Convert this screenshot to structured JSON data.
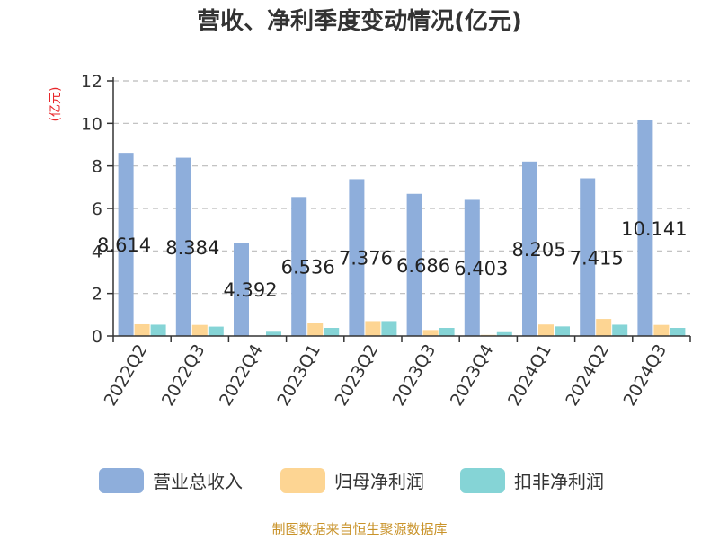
{
  "chart_data": {
    "type": "bar",
    "title": "营收、净利季度变动情况(亿元)",
    "ylabel": "(亿元)",
    "ylim": [
      0,
      12
    ],
    "yticks": [
      0,
      2,
      4,
      6,
      8,
      10,
      12
    ],
    "grid": true,
    "legend_position": "bottom",
    "categories": [
      "2022Q2",
      "2022Q3",
      "2022Q4",
      "2023Q1",
      "2023Q2",
      "2023Q3",
      "2023Q4",
      "2024Q1",
      "2024Q2",
      "2024Q3"
    ],
    "series": [
      {
        "name": "营业总收入",
        "color": "#8eaedb",
        "values": [
          8.614,
          8.384,
          4.392,
          6.536,
          7.376,
          6.686,
          6.403,
          8.205,
          7.415,
          10.141
        ],
        "labels": [
          "8.614",
          "8.384",
          "4.392",
          "6.536",
          "7.376",
          "6.686",
          "6.403",
          "8.205",
          "7.415",
          "10.141"
        ]
      },
      {
        "name": "归母净利润",
        "color": "#fdd593",
        "values": [
          0.55,
          0.52,
          0.0,
          0.62,
          0.7,
          0.28,
          0.05,
          0.54,
          0.8,
          0.52
        ]
      },
      {
        "name": "扣非净利润",
        "color": "#85d4d6",
        "values": [
          0.53,
          0.44,
          0.2,
          0.38,
          0.7,
          0.38,
          0.18,
          0.45,
          0.53,
          0.38
        ]
      }
    ]
  },
  "source": "制图数据来自恒生聚源数据库"
}
